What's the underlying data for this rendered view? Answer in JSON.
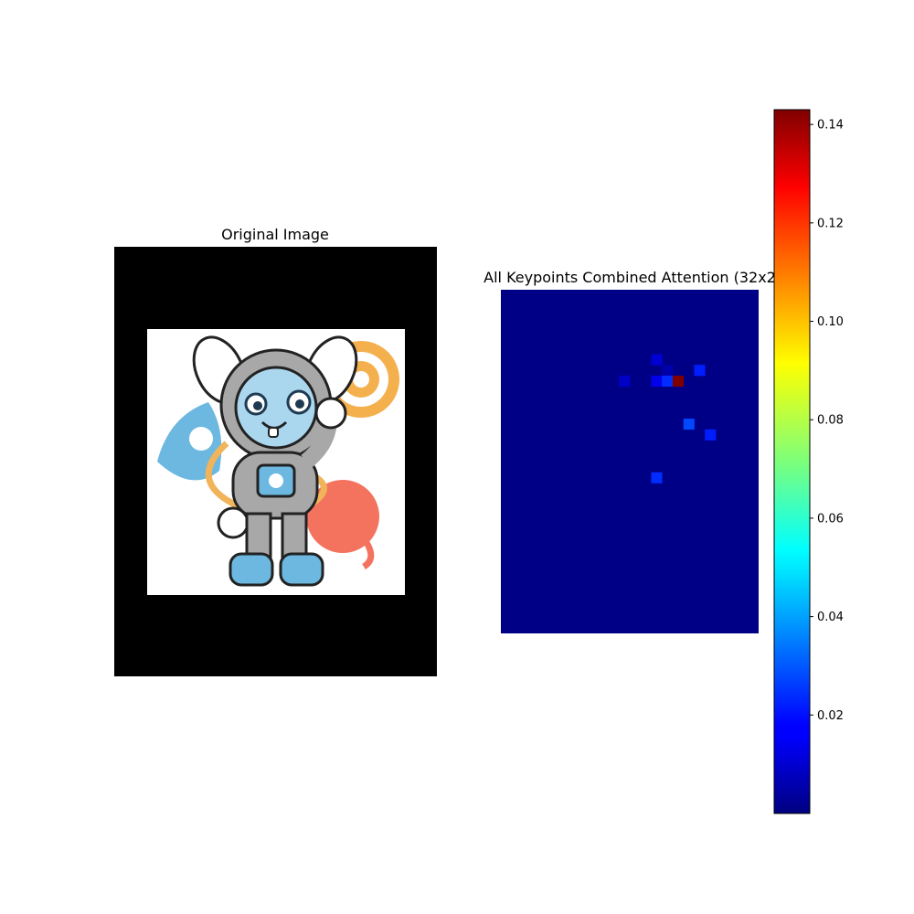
{
  "left_panel": {
    "title": "Original Image"
  },
  "chart_data": {
    "type": "heatmap",
    "title": "All Keypoints Combined Attention (32x2",
    "colormap": "jet",
    "grid_cols": 24,
    "grid_rows": 32,
    "background_value": 0.001,
    "hot_cells": [
      {
        "col": 14,
        "row": 6,
        "value": 0.012
      },
      {
        "col": 15,
        "row": 7,
        "value": 0.006
      },
      {
        "col": 18,
        "row": 7,
        "value": 0.022
      },
      {
        "col": 11,
        "row": 8,
        "value": 0.01
      },
      {
        "col": 14,
        "row": 8,
        "value": 0.015
      },
      {
        "col": 15,
        "row": 8,
        "value": 0.024
      },
      {
        "col": 16,
        "row": 8,
        "value": 0.143
      },
      {
        "col": 17,
        "row": 12,
        "value": 0.028
      },
      {
        "col": 19,
        "row": 13,
        "value": 0.022
      },
      {
        "col": 14,
        "row": 17,
        "value": 0.024
      }
    ],
    "colorbar": {
      "min": 0.0,
      "max": 0.143,
      "ticks": [
        0.02,
        0.04,
        0.06,
        0.08,
        0.1,
        0.12,
        0.14
      ],
      "tick_labels": [
        "0.02",
        "0.04",
        "0.06",
        "0.08",
        "0.10",
        "0.12",
        "0.14"
      ]
    }
  }
}
